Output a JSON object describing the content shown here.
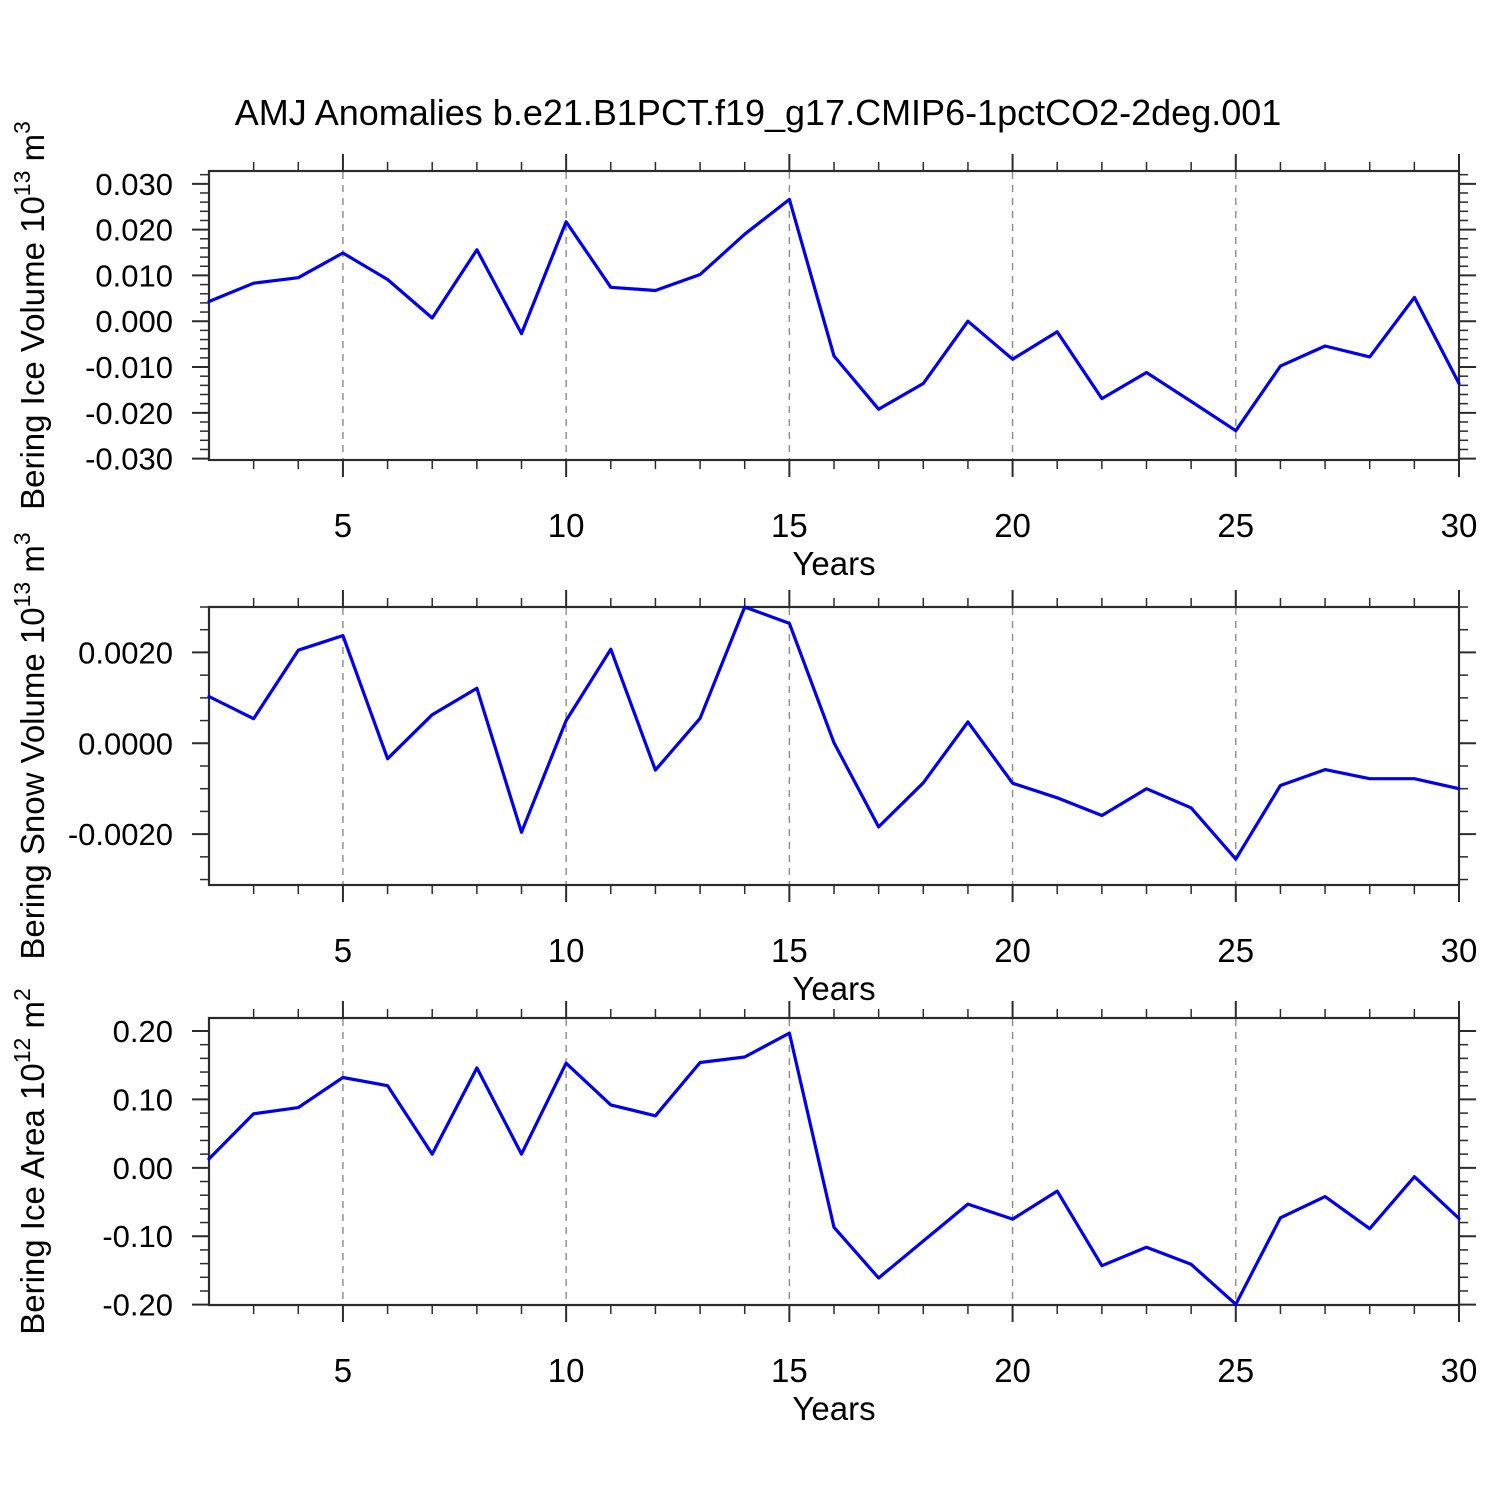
{
  "title": "AMJ Anomalies b.e21.B1PCT.f19_g17.CMIP6-1pctCO2-2deg.001",
  "style": {
    "line_color": "#0000ee",
    "grid_color": "#8a8a8a",
    "axis_color": "#2b2b2b",
    "text_color": "#000000",
    "background": "#ffffff"
  },
  "years": [
    2,
    3,
    4,
    5,
    6,
    7,
    8,
    9,
    10,
    11,
    12,
    13,
    14,
    15,
    16,
    17,
    18,
    19,
    20,
    21,
    22,
    23,
    24,
    25,
    26,
    27,
    28,
    29,
    30
  ],
  "chart_data": [
    {
      "type": "line",
      "title": "AMJ Anomalies b.e21.B1PCT.f19_g17.CMIP6-1pctCO2-2deg.001",
      "xlabel": "Years",
      "ylabel": "Bering Ice Volume 10^13 m^3",
      "ylabel_parts": {
        "prefix": "Bering Ice Volume 10",
        "exp": "13",
        "unit": " m",
        "unit_exp": "3"
      },
      "x": [
        2,
        3,
        4,
        5,
        6,
        7,
        8,
        9,
        10,
        11,
        12,
        13,
        14,
        15,
        16,
        17,
        18,
        19,
        20,
        21,
        22,
        23,
        24,
        25,
        26,
        27,
        28,
        29,
        30
      ],
      "series": [
        {
          "name": "Bering Ice Volume anomaly",
          "values": [
            0.0043,
            0.0083,
            0.0095,
            0.0149,
            0.0091,
            0.0007,
            0.0156,
            -0.0027,
            0.0217,
            0.0074,
            0.0067,
            0.0102,
            0.019,
            0.0266,
            -0.0076,
            -0.0192,
            -0.0136,
            0.0,
            -0.0083,
            -0.0023,
            -0.0169,
            -0.0112,
            -0.0175,
            -0.0239,
            -0.0098,
            -0.0054,
            -0.0078,
            0.0052,
            -0.0136
          ]
        }
      ],
      "xlim": [
        2,
        30
      ],
      "ylim": [
        -0.0303,
        0.0328
      ],
      "x_major_ticks": [
        5,
        10,
        15,
        20,
        25,
        30
      ],
      "x_minor_step": 1,
      "grid_x": [
        5,
        10,
        15,
        20,
        25
      ],
      "y_major_ticks": [
        0.03,
        0.02,
        0.01,
        0.0,
        -0.01,
        -0.02,
        -0.03
      ],
      "y_tick_labels": [
        "0.030",
        "0.020",
        "0.010",
        "0.000",
        "-0.010",
        "-0.020",
        "-0.030"
      ],
      "y_minor_step": 0.002,
      "grid_on": "x-dashed-only",
      "legend": "none"
    },
    {
      "type": "line",
      "title": "",
      "xlabel": "Years",
      "ylabel": "Bering Snow Volume 10^13 m^3",
      "ylabel_parts": {
        "prefix": "Bering Snow Volume 10",
        "exp": "13",
        "unit": " m",
        "unit_exp": "3"
      },
      "x": [
        2,
        3,
        4,
        5,
        6,
        7,
        8,
        9,
        10,
        11,
        12,
        13,
        14,
        15,
        16,
        17,
        18,
        19,
        20,
        21,
        22,
        23,
        24,
        25,
        26,
        27,
        28,
        29,
        30
      ],
      "series": [
        {
          "name": "Bering Snow Volume anomaly",
          "values": [
            0.00103,
            0.00054,
            0.00205,
            0.00237,
            -0.00034,
            0.00063,
            0.00121,
            -0.00196,
            0.0005,
            0.00207,
            -0.00059,
            0.00055,
            0.003,
            0.00264,
            1e-05,
            -0.00184,
            -0.00087,
            0.00047,
            -0.00088,
            -0.0012,
            -0.00159,
            -0.001,
            -0.00142,
            -0.00255,
            -0.00093,
            -0.00058,
            -0.00078,
            -0.00078,
            -0.001
          ]
        }
      ],
      "xlim": [
        2,
        30
      ],
      "ylim": [
        -0.00312,
        0.003
      ],
      "x_major_ticks": [
        5,
        10,
        15,
        20,
        25,
        30
      ],
      "x_minor_step": 1,
      "grid_x": [
        5,
        10,
        15,
        20,
        25
      ],
      "y_major_ticks": [
        0.002,
        0.0,
        -0.002
      ],
      "y_tick_labels": [
        "0.0020",
        "0.0000",
        "-0.0020"
      ],
      "y_minor_step": 0.0005,
      "grid_on": "x-dashed-only",
      "legend": "none"
    },
    {
      "type": "line",
      "title": "",
      "xlabel": "Years",
      "ylabel": "Bering Ice Area 10^12 m^2",
      "ylabel_parts": {
        "prefix": "Bering Ice Area 10",
        "exp": "12",
        "unit": " m",
        "unit_exp": "2"
      },
      "x": [
        2,
        3,
        4,
        5,
        6,
        7,
        8,
        9,
        10,
        11,
        12,
        13,
        14,
        15,
        16,
        17,
        18,
        19,
        20,
        21,
        22,
        23,
        24,
        25,
        26,
        27,
        28,
        29,
        30
      ],
      "series": [
        {
          "name": "Bering Ice Area anomaly",
          "values": [
            0.013,
            0.079,
            0.088,
            0.132,
            0.12,
            0.02,
            0.146,
            0.02,
            0.153,
            0.092,
            0.076,
            0.154,
            0.162,
            0.197,
            -0.087,
            -0.161,
            -0.107,
            -0.053,
            -0.075,
            -0.034,
            -0.143,
            -0.116,
            -0.141,
            -0.1995,
            -0.073,
            -0.042,
            -0.089,
            -0.013,
            -0.074
          ]
        }
      ],
      "xlim": [
        2,
        30
      ],
      "ylim": [
        -0.2005,
        0.219
      ],
      "x_major_ticks": [
        5,
        10,
        15,
        20,
        25,
        30
      ],
      "x_minor_step": 1,
      "grid_x": [
        5,
        10,
        15,
        20,
        25
      ],
      "y_major_ticks": [
        0.2,
        0.1,
        0.0,
        -0.1,
        -0.2
      ],
      "y_tick_labels": [
        "0.20",
        "0.10",
        "0.00",
        "-0.10",
        "-0.20"
      ],
      "y_minor_step": 0.02,
      "grid_on": "x-dashed-only",
      "legend": "none"
    }
  ]
}
